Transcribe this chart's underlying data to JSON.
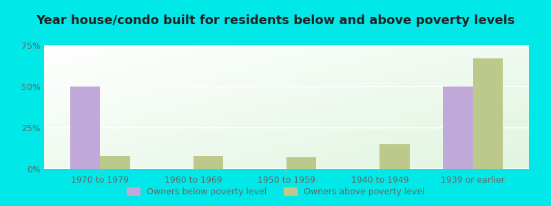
{
  "title": "Year house/condo built for residents below and above poverty levels",
  "categories": [
    "1970 to 1979",
    "1960 to 1969",
    "1950 to 1959",
    "1940 to 1949",
    "1939 or earlier"
  ],
  "below_poverty": [
    50,
    0,
    0,
    0,
    50
  ],
  "above_poverty": [
    8,
    8,
    7,
    15,
    67
  ],
  "below_color": "#c0a8d8",
  "above_color": "#bdc98a",
  "background_cyan": "#00e8e8",
  "ylim": [
    0,
    75
  ],
  "yticks": [
    0,
    25,
    50,
    75
  ],
  "ytick_labels": [
    "0%",
    "25%",
    "50%",
    "75%"
  ],
  "legend_below": "Owners below poverty level",
  "legend_above": "Owners above poverty level",
  "title_fontsize": 13,
  "tick_fontsize": 9,
  "legend_fontsize": 9
}
